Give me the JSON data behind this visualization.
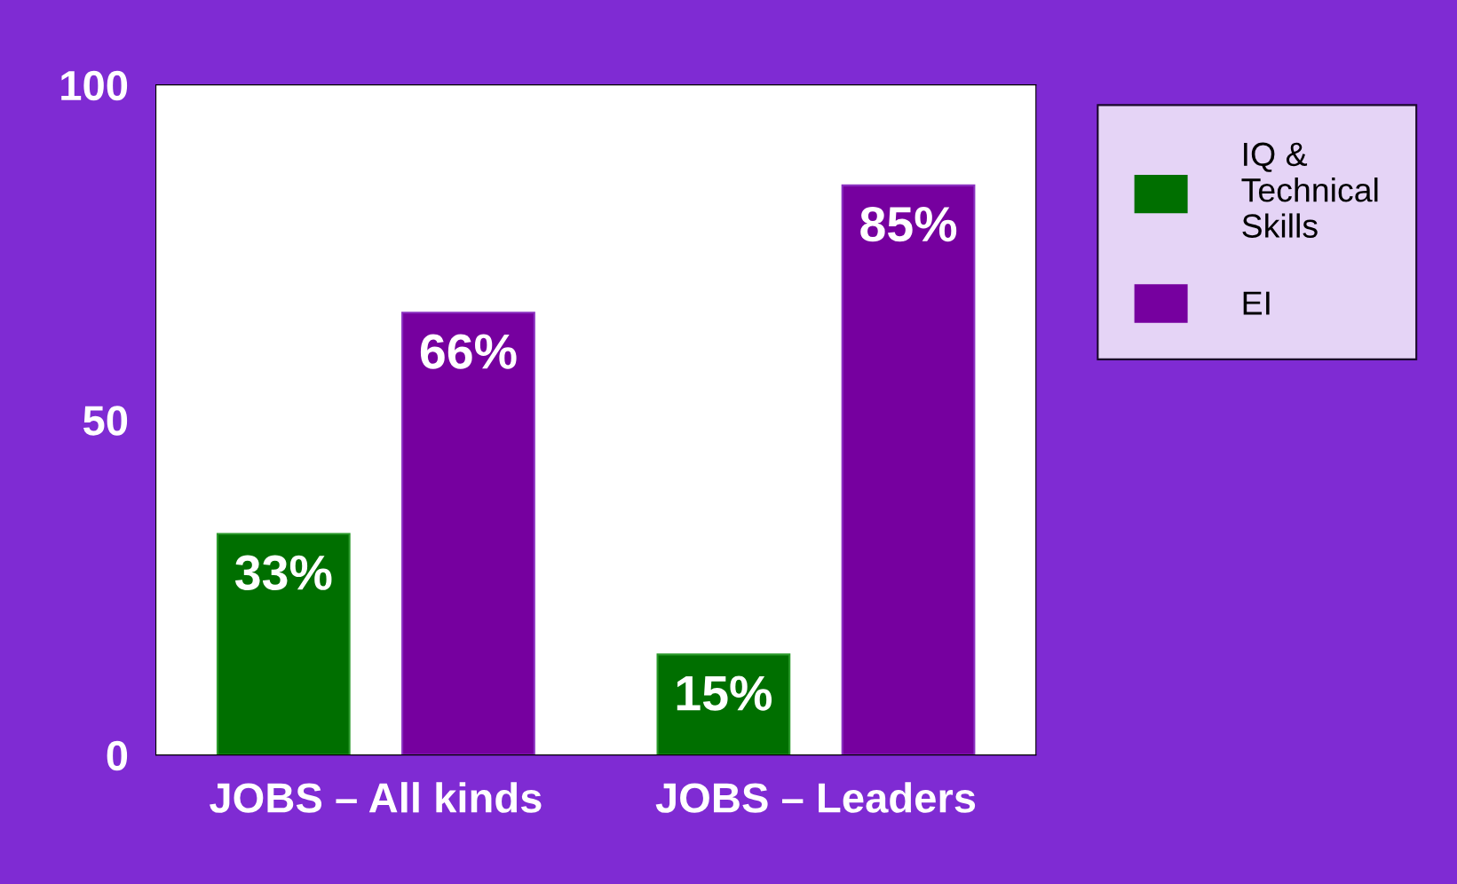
{
  "chart_data": {
    "type": "bar",
    "categories": [
      "JOBS – All kinds",
      "JOBS – Leaders"
    ],
    "series": [
      {
        "name": "IQ & Technical Skills",
        "color": "#006f00",
        "values": [
          33,
          15
        ],
        "value_labels": [
          "33%",
          "15%"
        ]
      },
      {
        "name": "EI",
        "color": "#76009f",
        "values": [
          66,
          85
        ],
        "value_labels": [
          "66%",
          "85%"
        ]
      }
    ],
    "ylim": [
      0,
      100
    ],
    "yticks": [
      0,
      50,
      100
    ],
    "grid": false,
    "legend": "top right"
  }
}
